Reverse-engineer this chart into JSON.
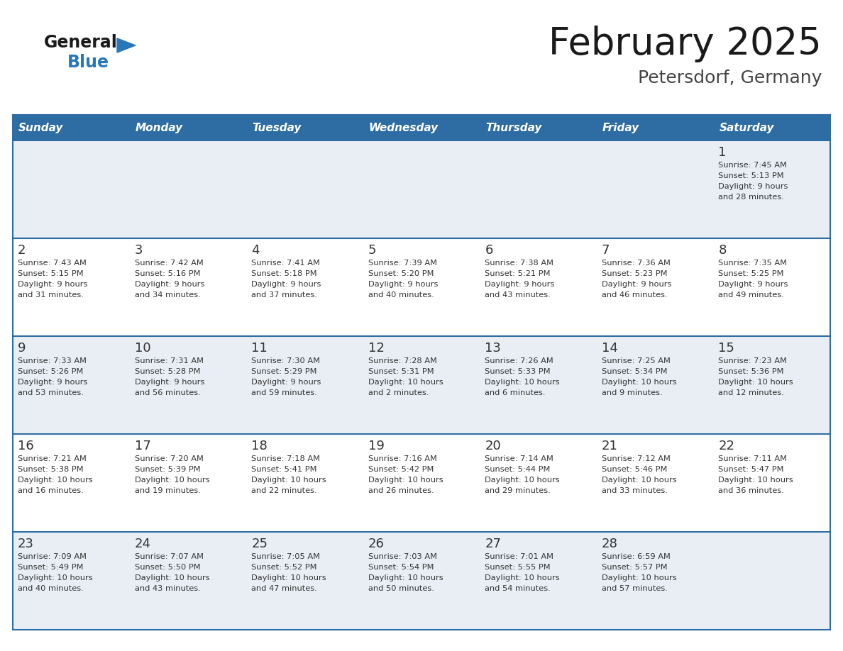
{
  "title": "February 2025",
  "subtitle": "Petersdorf, Germany",
  "header_bg": "#2E6DA4",
  "header_text": "#FFFFFF",
  "cell_bg_light": "#E8EEF4",
  "cell_bg_white": "#FFFFFF",
  "row_line_color": "#2E6DA4",
  "text_color": "#333333",
  "days_of_week": [
    "Sunday",
    "Monday",
    "Tuesday",
    "Wednesday",
    "Thursday",
    "Friday",
    "Saturday"
  ],
  "logo_general_color": "#1A1A1A",
  "logo_blue_color": "#2878B8",
  "title_color": "#1A1A1A",
  "subtitle_color": "#444444",
  "calendar_data": [
    [
      {
        "day": "",
        "sunrise": "",
        "sunset": "",
        "daylight": ""
      },
      {
        "day": "",
        "sunrise": "",
        "sunset": "",
        "daylight": ""
      },
      {
        "day": "",
        "sunrise": "",
        "sunset": "",
        "daylight": ""
      },
      {
        "day": "",
        "sunrise": "",
        "sunset": "",
        "daylight": ""
      },
      {
        "day": "",
        "sunrise": "",
        "sunset": "",
        "daylight": ""
      },
      {
        "day": "",
        "sunrise": "",
        "sunset": "",
        "daylight": ""
      },
      {
        "day": "1",
        "sunrise": "7:45 AM",
        "sunset": "5:13 PM",
        "daylight": "9 hours and 28 minutes."
      }
    ],
    [
      {
        "day": "2",
        "sunrise": "7:43 AM",
        "sunset": "5:15 PM",
        "daylight": "9 hours and 31 minutes."
      },
      {
        "day": "3",
        "sunrise": "7:42 AM",
        "sunset": "5:16 PM",
        "daylight": "9 hours and 34 minutes."
      },
      {
        "day": "4",
        "sunrise": "7:41 AM",
        "sunset": "5:18 PM",
        "daylight": "9 hours and 37 minutes."
      },
      {
        "day": "5",
        "sunrise": "7:39 AM",
        "sunset": "5:20 PM",
        "daylight": "9 hours and 40 minutes."
      },
      {
        "day": "6",
        "sunrise": "7:38 AM",
        "sunset": "5:21 PM",
        "daylight": "9 hours and 43 minutes."
      },
      {
        "day": "7",
        "sunrise": "7:36 AM",
        "sunset": "5:23 PM",
        "daylight": "9 hours and 46 minutes."
      },
      {
        "day": "8",
        "sunrise": "7:35 AM",
        "sunset": "5:25 PM",
        "daylight": "9 hours and 49 minutes."
      }
    ],
    [
      {
        "day": "9",
        "sunrise": "7:33 AM",
        "sunset": "5:26 PM",
        "daylight": "9 hours and 53 minutes."
      },
      {
        "day": "10",
        "sunrise": "7:31 AM",
        "sunset": "5:28 PM",
        "daylight": "9 hours and 56 minutes."
      },
      {
        "day": "11",
        "sunrise": "7:30 AM",
        "sunset": "5:29 PM",
        "daylight": "9 hours and 59 minutes."
      },
      {
        "day": "12",
        "sunrise": "7:28 AM",
        "sunset": "5:31 PM",
        "daylight": "10 hours and 2 minutes."
      },
      {
        "day": "13",
        "sunrise": "7:26 AM",
        "sunset": "5:33 PM",
        "daylight": "10 hours and 6 minutes."
      },
      {
        "day": "14",
        "sunrise": "7:25 AM",
        "sunset": "5:34 PM",
        "daylight": "10 hours and 9 minutes."
      },
      {
        "day": "15",
        "sunrise": "7:23 AM",
        "sunset": "5:36 PM",
        "daylight": "10 hours and 12 minutes."
      }
    ],
    [
      {
        "day": "16",
        "sunrise": "7:21 AM",
        "sunset": "5:38 PM",
        "daylight": "10 hours and 16 minutes."
      },
      {
        "day": "17",
        "sunrise": "7:20 AM",
        "sunset": "5:39 PM",
        "daylight": "10 hours and 19 minutes."
      },
      {
        "day": "18",
        "sunrise": "7:18 AM",
        "sunset": "5:41 PM",
        "daylight": "10 hours and 22 minutes."
      },
      {
        "day": "19",
        "sunrise": "7:16 AM",
        "sunset": "5:42 PM",
        "daylight": "10 hours and 26 minutes."
      },
      {
        "day": "20",
        "sunrise": "7:14 AM",
        "sunset": "5:44 PM",
        "daylight": "10 hours and 29 minutes."
      },
      {
        "day": "21",
        "sunrise": "7:12 AM",
        "sunset": "5:46 PM",
        "daylight": "10 hours and 33 minutes."
      },
      {
        "day": "22",
        "sunrise": "7:11 AM",
        "sunset": "5:47 PM",
        "daylight": "10 hours and 36 minutes."
      }
    ],
    [
      {
        "day": "23",
        "sunrise": "7:09 AM",
        "sunset": "5:49 PM",
        "daylight": "10 hours and 40 minutes."
      },
      {
        "day": "24",
        "sunrise": "7:07 AM",
        "sunset": "5:50 PM",
        "daylight": "10 hours and 43 minutes."
      },
      {
        "day": "25",
        "sunrise": "7:05 AM",
        "sunset": "5:52 PM",
        "daylight": "10 hours and 47 minutes."
      },
      {
        "day": "26",
        "sunrise": "7:03 AM",
        "sunset": "5:54 PM",
        "daylight": "10 hours and 50 minutes."
      },
      {
        "day": "27",
        "sunrise": "7:01 AM",
        "sunset": "5:55 PM",
        "daylight": "10 hours and 54 minutes."
      },
      {
        "day": "28",
        "sunrise": "6:59 AM",
        "sunset": "5:57 PM",
        "daylight": "10 hours and 57 minutes."
      },
      {
        "day": "",
        "sunrise": "",
        "sunset": "",
        "daylight": ""
      }
    ]
  ]
}
